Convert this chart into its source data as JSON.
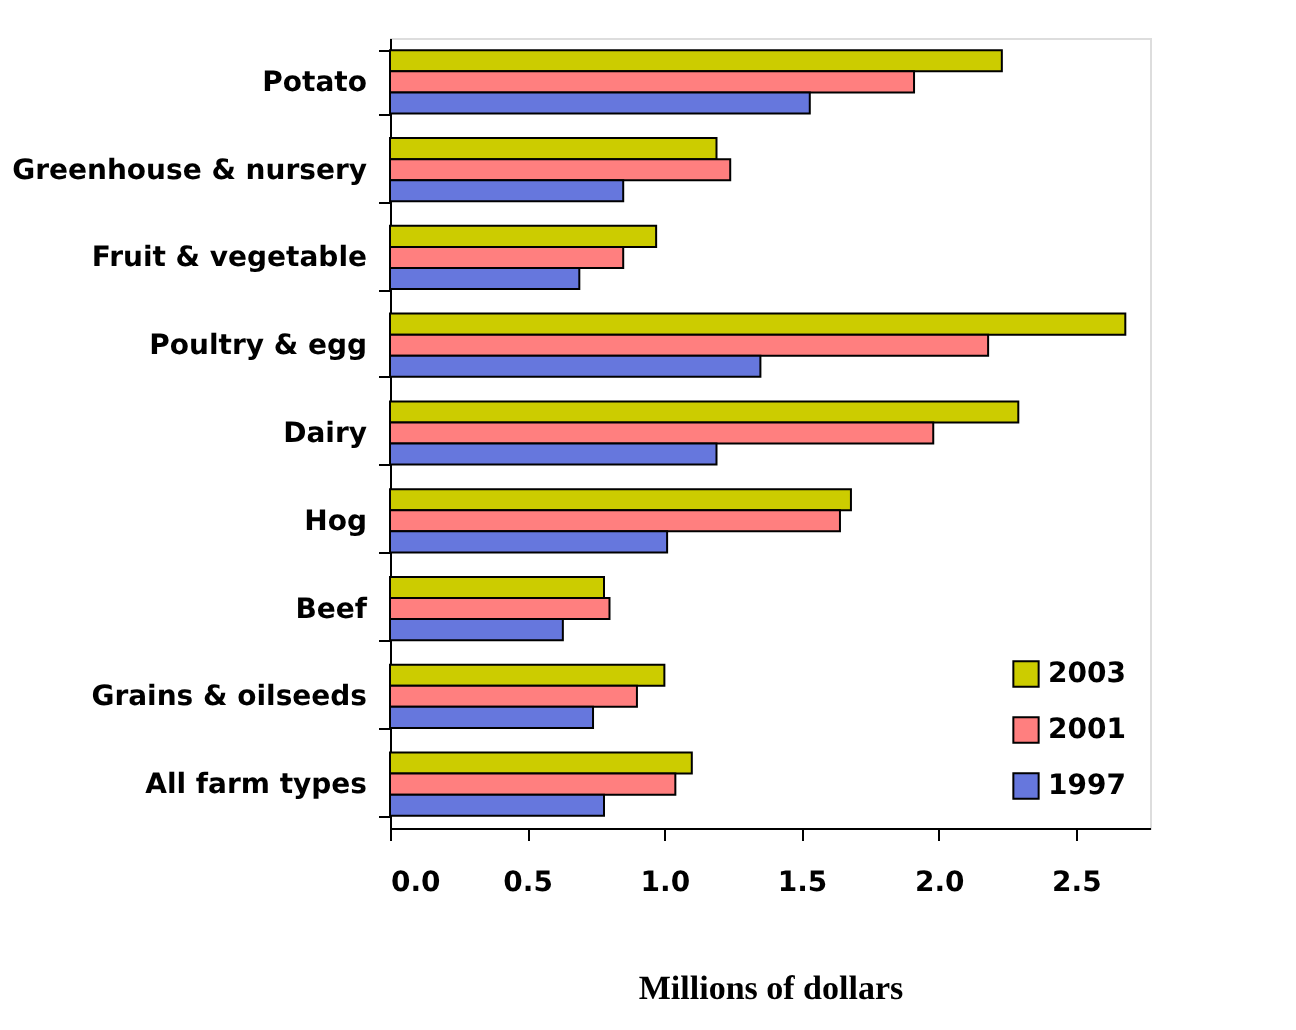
{
  "chart_data": {
    "type": "bar",
    "orientation": "horizontal",
    "xlabel": "Millions of dollars",
    "categories": [
      "Potato",
      "Greenhouse & nursery",
      "Fruit & vegetable",
      "Poultry & egg",
      "Dairy",
      "Hog",
      "Beef",
      "Grains & oilseeds",
      "All farm types"
    ],
    "series": [
      {
        "name": "2003",
        "color": "#cccc00",
        "values": [
          2.23,
          1.19,
          0.97,
          2.68,
          2.29,
          1.68,
          0.78,
          1.0,
          1.1
        ]
      },
      {
        "name": "2001",
        "color": "#ff7f7f",
        "values": [
          1.91,
          1.24,
          0.85,
          2.18,
          1.98,
          1.64,
          0.8,
          0.9,
          1.04
        ]
      },
      {
        "name": "1997",
        "color": "#6677dd",
        "values": [
          1.53,
          0.85,
          0.69,
          1.35,
          1.19,
          1.01,
          0.63,
          0.74,
          0.78
        ]
      }
    ],
    "xlim": [
      0,
      2.77
    ],
    "xticks": [
      {
        "value": 0,
        "label": "0.0"
      },
      {
        "value": 0.5,
        "label": "0.5"
      },
      {
        "value": 1,
        "label": "1.0"
      },
      {
        "value": 1.5,
        "label": "1.5"
      },
      {
        "value": 2,
        "label": "2.0"
      },
      {
        "value": 2.5,
        "label": "2.5"
      }
    ],
    "grid": false,
    "legend": "bottom right"
  }
}
